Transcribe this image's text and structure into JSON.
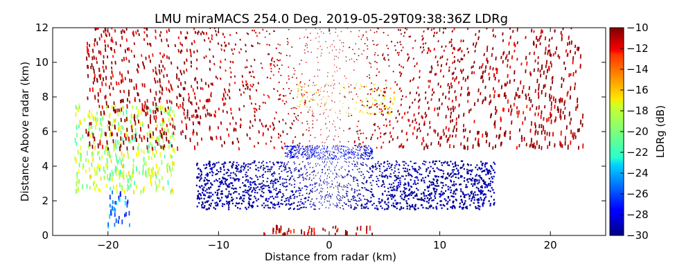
{
  "chart_data": {
    "type": "heatmap",
    "title": "LMU miraMACS 254.0 Deg. 2019-05-29T09:38:36Z  LDRg",
    "xlabel": "Distance from radar (km)",
    "ylabel": "Distance Above radar  (km)",
    "xlim": [
      -25,
      25
    ],
    "ylim": [
      0,
      12
    ],
    "x_ticks": [
      -20,
      -10,
      0,
      10,
      20
    ],
    "y_ticks": [
      0,
      2,
      4,
      6,
      8,
      10,
      12
    ],
    "grid": false,
    "colorbar": {
      "label": "LDRg (dB)",
      "range": [
        -30,
        -10
      ],
      "ticks": [
        -10,
        -12,
        -14,
        -16,
        -18,
        -20,
        -22,
        -24,
        -26,
        -28,
        -30
      ],
      "colormap": "jet"
    },
    "regions": [
      {
        "x_range": [
          -12,
          15
        ],
        "y_range": [
          1.5,
          4.3
        ],
        "value": -29.5
      },
      {
        "x_range": [
          -4,
          4
        ],
        "y_range": [
          4.4,
          5.2
        ],
        "value": -28
      },
      {
        "x_range": [
          -6,
          4
        ],
        "y_range": [
          0,
          0.5
        ],
        "value": -11
      },
      {
        "x_range": [
          -20,
          -18
        ],
        "y_range": [
          0.5,
          2.5
        ],
        "value": -25
      },
      {
        "x_range": [
          -23,
          -14
        ],
        "y_range": [
          2.5,
          7.5
        ],
        "value": -19
      },
      {
        "x_range": [
          -3,
          6
        ],
        "y_range": [
          7,
          8.8
        ],
        "value": -17
      },
      {
        "x_range": [
          -22,
          23
        ],
        "y_range": [
          5,
          12
        ],
        "value": -10.5
      }
    ]
  }
}
